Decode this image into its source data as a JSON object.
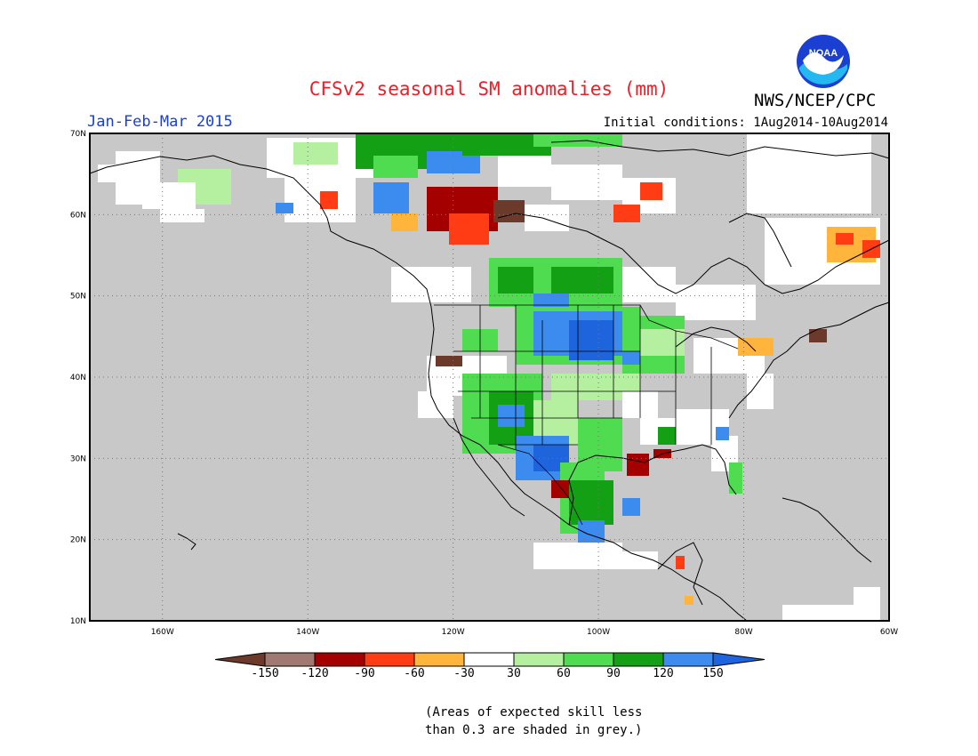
{
  "header": {
    "title": "CFSv2 seasonal SM anomalies (mm)",
    "organization": "NWS/NCEP/CPC",
    "period": "Jan-Feb-Mar 2015",
    "initial_conditions": "Initial conditions: 1Aug2014-10Aug2014",
    "logo_text": "NOAA"
  },
  "map": {
    "lon_range": [
      -170,
      -60
    ],
    "lat_range": [
      10,
      70
    ],
    "lon_ticks": [
      "160W",
      "140W",
      "120W",
      "100W",
      "80W",
      "60W"
    ],
    "lat_ticks": [
      "10N",
      "20N",
      "30N",
      "40N",
      "50N",
      "60N",
      "70N"
    ],
    "land_color": "#c8c8c8",
    "ocean_color": "#c8c8c8",
    "grid_style": "dotted"
  },
  "colorbar": {
    "ticks": [
      "-150",
      "-120",
      "-90",
      "-60",
      "-30",
      "30",
      "60",
      "90",
      "120",
      "150"
    ],
    "colors": [
      "#6b3a2a",
      "#a07a70",
      "#a40000",
      "#ff3c14",
      "#ffb43c",
      "#ffffff",
      "#b4f0a0",
      "#50dc50",
      "#14a014",
      "#3c8cf0",
      "#1e64dc"
    ]
  },
  "note": {
    "line1": "(Areas of expected skill less",
    "line2": "than 0.3 are shaded in grey.)"
  }
}
